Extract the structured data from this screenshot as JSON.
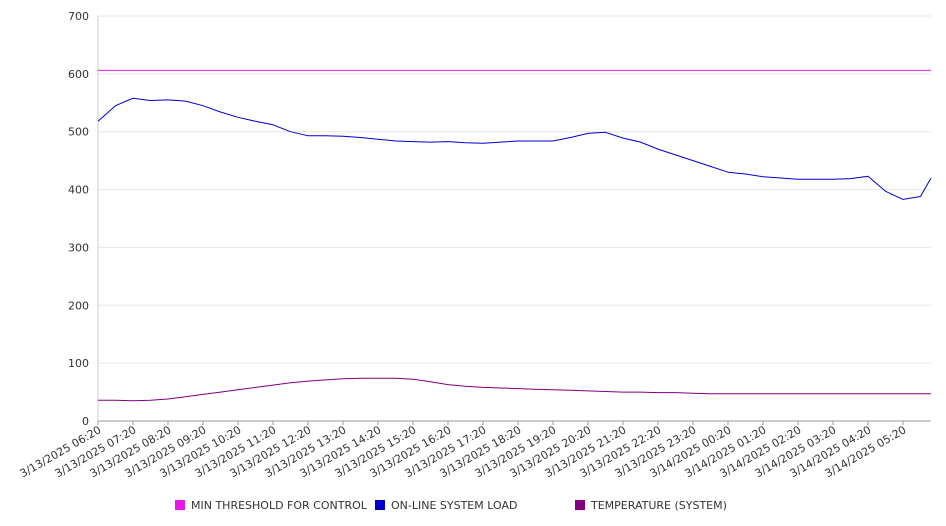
{
  "chart_data": {
    "type": "line",
    "title": "",
    "xlabel": "",
    "ylabel": "",
    "ylim": [
      0,
      700
    ],
    "yticks": [
      0,
      100,
      200,
      300,
      400,
      500,
      600,
      700
    ],
    "grid": true,
    "legend_position": "bottom",
    "x_tick_labels": [
      "3/13/2025 06:20",
      "3/13/2025 07:20",
      "3/13/2025 08:20",
      "3/13/2025 09:20",
      "3/13/2025 10:20",
      "3/13/2025 11:20",
      "3/13/2025 12:20",
      "3/13/2025 13:20",
      "3/13/2025 14:20",
      "3/13/2025 15:20",
      "3/13/2025 16:20",
      "3/13/2025 17:20",
      "3/13/2025 18:20",
      "3/13/2025 19:20",
      "3/13/2025 20:20",
      "3/13/2025 21:20",
      "3/13/2025 22:20",
      "3/13/2025 23:20",
      "3/14/2025 00:20",
      "3/14/2025 01:20",
      "3/14/2025 02:20",
      "3/14/2025 03:20",
      "3/14/2025 04:20",
      "3/14/2025 05:20"
    ],
    "x_hours": [
      0,
      0.5,
      1,
      1.5,
      2,
      2.5,
      3,
      3.5,
      4,
      4.5,
      5,
      5.5,
      6,
      6.5,
      7,
      7.5,
      8,
      8.5,
      9,
      9.5,
      10,
      10.5,
      11,
      11.5,
      12,
      12.5,
      13,
      13.5,
      14,
      14.5,
      15,
      15.5,
      16,
      16.5,
      17,
      17.5,
      18,
      18.5,
      19,
      19.5,
      20,
      20.5,
      21,
      21.5,
      22,
      22.5,
      23,
      23.5,
      23.8
    ],
    "series": [
      {
        "name": "MIN THRESHOLD FOR CONTROL",
        "color": "#e619e6",
        "values": [
          606,
          606,
          606,
          606,
          606,
          606,
          606,
          606,
          606,
          606,
          606,
          606,
          606,
          606,
          606,
          606,
          606,
          606,
          606,
          606,
          606,
          606,
          606,
          606,
          606,
          606,
          606,
          606,
          606,
          606,
          606,
          606,
          606,
          606,
          606,
          606,
          606,
          606,
          606,
          606,
          606,
          606,
          606,
          606,
          606,
          606,
          606,
          606,
          606
        ]
      },
      {
        "name": "ON-LINE SYSTEM LOAD",
        "color": "#0000cc",
        "values": [
          518,
          545,
          558,
          554,
          555,
          553,
          545,
          534,
          525,
          518,
          512,
          500,
          493,
          493,
          492,
          490,
          487,
          484,
          483,
          482,
          483,
          481,
          480,
          482,
          484,
          484,
          484,
          490,
          497,
          499,
          489,
          482,
          470,
          460,
          450,
          440,
          430,
          427,
          422,
          420,
          418,
          418,
          418,
          419,
          423,
          397,
          383,
          388,
          420
        ]
      },
      {
        "name": "TEMPERATURE (SYSTEM)",
        "color": "#800080",
        "values": [
          36,
          36,
          35,
          36,
          38,
          42,
          46,
          50,
          54,
          58,
          62,
          66,
          69,
          71,
          73,
          74,
          74,
          74,
          72,
          68,
          63,
          60,
          58,
          57,
          56,
          55,
          54,
          53,
          52,
          51,
          50,
          50,
          49,
          49,
          48,
          47,
          47,
          47,
          47,
          47,
          47,
          47,
          47,
          47,
          47,
          47,
          47,
          47,
          47
        ]
      }
    ]
  }
}
